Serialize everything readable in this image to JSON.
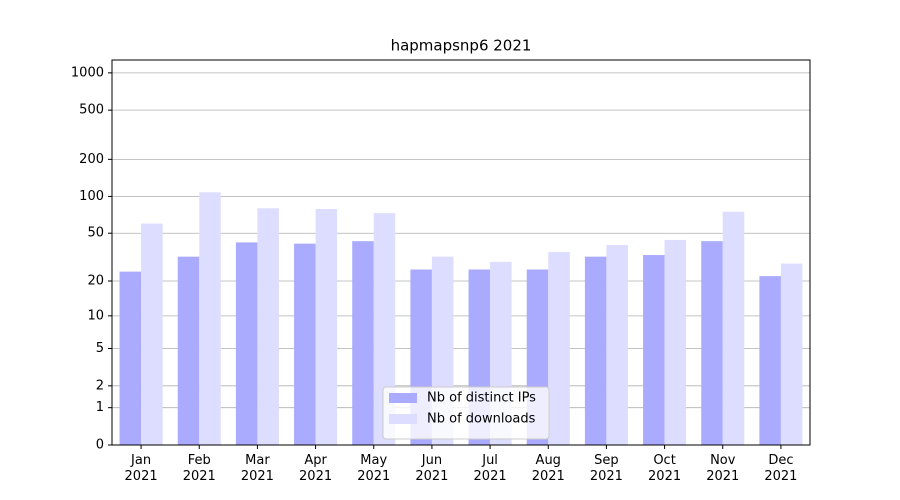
{
  "chart_data": {
    "type": "bar",
    "title": "hapmapsnp6 2021",
    "categories": [
      "Jan\n2021",
      "Feb\n2021",
      "Mar\n2021",
      "Apr\n2021",
      "May\n2021",
      "Jun\n2021",
      "Jul\n2021",
      "Aug\n2021",
      "Sep\n2021",
      "Oct\n2021",
      "Nov\n2021",
      "Dec\n2021"
    ],
    "series": [
      {
        "name": "Nb of distinct IPs",
        "color": "#aaaaff",
        "values": [
          24,
          32,
          42,
          41,
          43,
          25,
          25,
          25,
          32,
          33,
          43,
          22
        ]
      },
      {
        "name": "Nb of downloads",
        "color": "#ddddff",
        "values": [
          60,
          108,
          80,
          79,
          73,
          32,
          29,
          35,
          40,
          44,
          75,
          28
        ]
      }
    ],
    "yscale": "log1p",
    "ylim": [
      0,
      1270
    ],
    "yticks": [
      0,
      1,
      2,
      5,
      10,
      20,
      50,
      100,
      200,
      500,
      1000
    ],
    "grid": true,
    "legend": "lower center"
  }
}
